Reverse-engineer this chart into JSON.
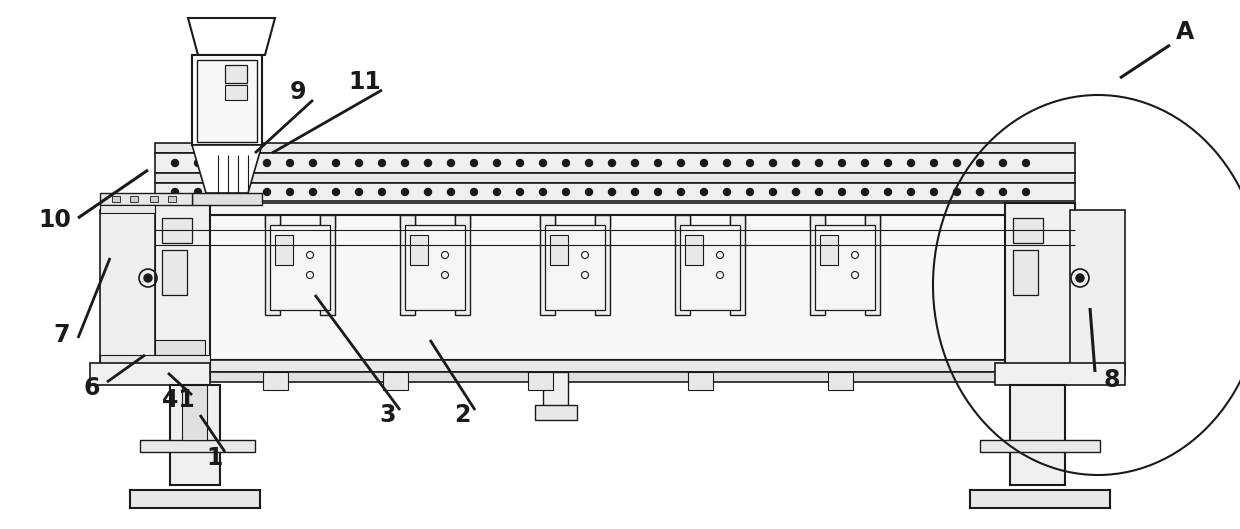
{
  "bg_color": "#ffffff",
  "lc": "#1a1a1a",
  "lw": 1.0,
  "fs": 17
}
